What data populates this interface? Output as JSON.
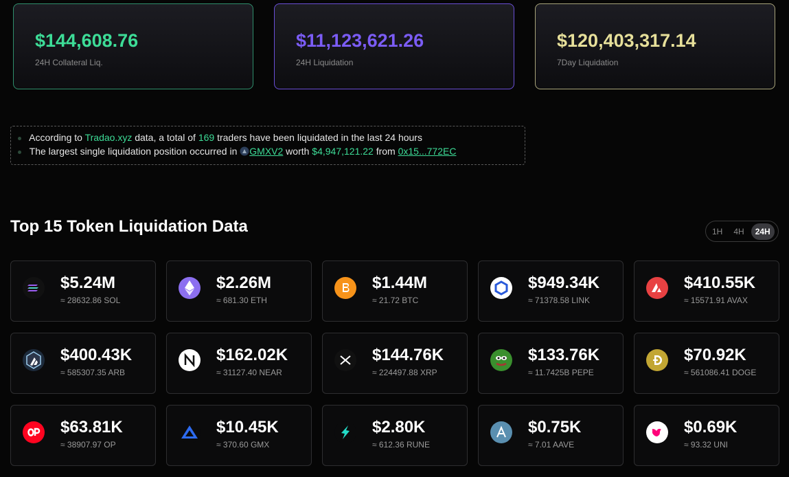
{
  "stats": [
    {
      "value": "$144,608.76",
      "label": "24H Collateral Liq."
    },
    {
      "value": "$11,123,621.26",
      "label": "24H Liquidation"
    },
    {
      "value": "$120,403,317.14",
      "label": "7Day Liquidation"
    }
  ],
  "notice": {
    "line1": {
      "prefix": "According to",
      "source": "Tradao.xyz",
      "middle": "data, a total of",
      "count": "169",
      "suffix": "traders have been liquidated in the last 24 hours"
    },
    "line2": {
      "prefix": "The largest single liquidation position occurred in",
      "platform": "GMXV2",
      "middle": "worth",
      "amount": "$4,947,121.22",
      "from": "from",
      "address": "0x15...772EC"
    }
  },
  "section_title": "Top 15 Token Liquidation Data",
  "timeframes": [
    "1H",
    "4H",
    "24H"
  ],
  "tokens": [
    {
      "value": "$5.24M",
      "amount": "≈ 28632.86 SOL"
    },
    {
      "value": "$2.26M",
      "amount": "≈ 681.30 ETH"
    },
    {
      "value": "$1.44M",
      "amount": "≈ 21.72 BTC"
    },
    {
      "value": "$949.34K",
      "amount": "≈ 71378.58 LINK"
    },
    {
      "value": "$410.55K",
      "amount": "≈ 15571.91 AVAX"
    },
    {
      "value": "$400.43K",
      "amount": "≈ 585307.35 ARB"
    },
    {
      "value": "$162.02K",
      "amount": "≈ 31127.40 NEAR"
    },
    {
      "value": "$144.76K",
      "amount": "≈ 224497.88 XRP"
    },
    {
      "value": "$133.76K",
      "amount": "≈ 11.7425B PEPE"
    },
    {
      "value": "$70.92K",
      "amount": "≈ 561086.41 DOGE"
    },
    {
      "value": "$63.81K",
      "amount": "≈ 38907.97 OP"
    },
    {
      "value": "$10.45K",
      "amount": "≈ 370.60 GMX"
    },
    {
      "value": "$2.80K",
      "amount": "≈ 612.36 RUNE"
    },
    {
      "value": "$0.75K",
      "amount": "≈ 7.01 AAVE"
    },
    {
      "value": "$0.69K",
      "amount": "≈ 93.32 UNI"
    }
  ]
}
